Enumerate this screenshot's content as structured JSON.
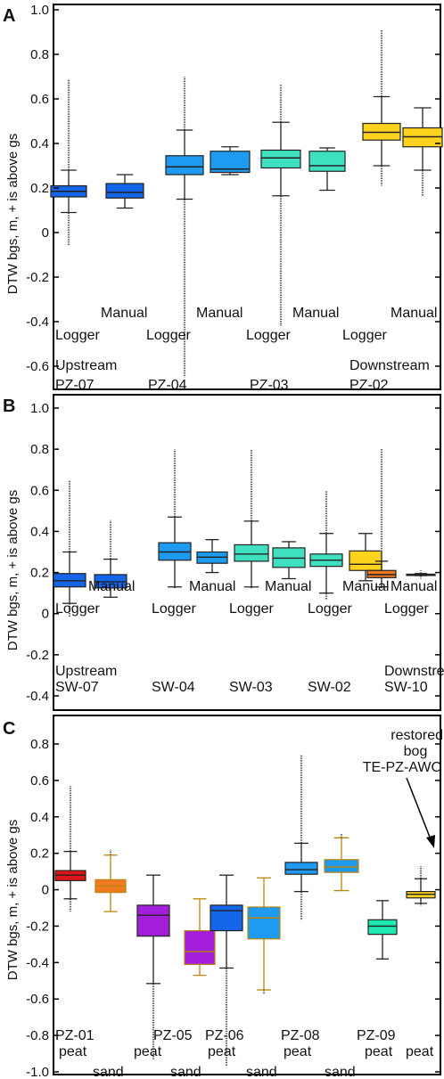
{
  "chart_data": [
    {
      "panel": "A",
      "type": "box",
      "ylabel": "DTW bgs, m, + is above gs",
      "ylim": [
        -0.65,
        1.02
      ],
      "yticks": [
        "1.0",
        "0.8",
        "0.6",
        "0.4",
        "0.2",
        "0",
        "-0.2",
        "-0.4",
        "-0.6"
      ],
      "boxes": [
        {
          "group": "PZ-07",
          "method": "Logger",
          "color": "#1565e8",
          "q1": 0.16,
          "median": 0.185,
          "q3": 0.21,
          "whislo": 0.09,
          "whishi": 0.28,
          "outlo": -0.06,
          "outhi": 0.69
        },
        {
          "group": "PZ-07",
          "method": "Manual",
          "color": "#1565e8",
          "q1": 0.155,
          "median": 0.18,
          "q3": 0.22,
          "whislo": 0.11,
          "whishi": 0.26,
          "outlo": null,
          "outhi": null
        },
        {
          "group": "PZ-04",
          "method": "Logger",
          "color": "#1e9af0",
          "q1": 0.26,
          "median": 0.295,
          "q3": 0.345,
          "whislo": 0.15,
          "whishi": 0.46,
          "outlo": -0.65,
          "outhi": 0.7
        },
        {
          "group": "PZ-04",
          "method": "Manual",
          "color": "#1e9af0",
          "q1": 0.27,
          "median": 0.285,
          "q3": 0.365,
          "whislo": 0.26,
          "whishi": 0.385,
          "outlo": null,
          "outhi": null
        },
        {
          "group": "PZ-03",
          "method": "Logger",
          "color": "#3fe0c0",
          "q1": 0.29,
          "median": 0.335,
          "q3": 0.37,
          "whislo": 0.165,
          "whishi": 0.495,
          "outlo": -0.42,
          "outhi": 0.665
        },
        {
          "group": "PZ-03",
          "method": "Manual",
          "color": "#3fe0c0",
          "q1": 0.275,
          "median": 0.3,
          "q3": 0.365,
          "whislo": 0.19,
          "whishi": 0.38,
          "outlo": null,
          "outhi": null
        },
        {
          "group": "PZ-02",
          "method": "Logger",
          "color": "#ffd21e",
          "q1": 0.415,
          "median": 0.45,
          "q3": 0.49,
          "whislo": 0.3,
          "whishi": 0.61,
          "outlo": 0.21,
          "outhi": 0.91
        },
        {
          "group": "PZ-02",
          "method": "Manual",
          "color": "#ffd21e",
          "q1": 0.385,
          "median": 0.43,
          "q3": 0.47,
          "whislo": 0.28,
          "whishi": 0.56,
          "outlo": 0.16,
          "outhi": null
        }
      ],
      "method_labels": [
        "Logger",
        "Manual",
        "Logger",
        "Manual",
        "Logger",
        "Manual",
        "Logger",
        "Manual"
      ],
      "site_labels": [
        {
          "top": "Upstream",
          "bottom": "PZ-07"
        },
        {
          "top": "",
          "bottom": "PZ-04"
        },
        {
          "top": "",
          "bottom": "PZ-03"
        },
        {
          "top": "Downstream",
          "bottom": "PZ-02"
        }
      ]
    },
    {
      "panel": "B",
      "type": "box",
      "ylabel": "DTW bgs, m, + is above gs",
      "ylim": [
        -0.4,
        1.02
      ],
      "yticks": [
        "1.0",
        "0.8",
        "0.6",
        "0.4",
        "0.2",
        "0",
        "-0.2",
        "-0.4"
      ],
      "boxes": [
        {
          "group": "SW-07",
          "method": "Logger",
          "color": "#1565e8",
          "q1": 0.13,
          "median": 0.16,
          "q3": 0.195,
          "whislo": 0.05,
          "whishi": 0.3,
          "outlo": -0.02,
          "outhi": 0.65
        },
        {
          "group": "SW-07",
          "method": "Manual",
          "color": "#1565e8",
          "q1": 0.125,
          "median": 0.155,
          "q3": 0.19,
          "whislo": 0.08,
          "whishi": 0.265,
          "outlo": null,
          "outhi": 0.455
        },
        {
          "group": "SW-04",
          "method": "Logger",
          "color": "#1e9af0",
          "q1": 0.26,
          "median": 0.3,
          "q3": 0.345,
          "whislo": 0.13,
          "whishi": 0.47,
          "outlo": 0.12,
          "outhi": 0.8
        },
        {
          "group": "SW-04",
          "method": "Manual",
          "color": "#1e9af0",
          "q1": 0.245,
          "median": 0.275,
          "q3": 0.3,
          "whislo": 0.2,
          "whishi": 0.36,
          "outlo": null,
          "outhi": null
        },
        {
          "group": "SW-03",
          "method": "Logger",
          "color": "#3fe0c0",
          "q1": 0.255,
          "median": 0.29,
          "q3": 0.335,
          "whislo": 0.13,
          "whishi": 0.45,
          "outlo": 0.12,
          "outhi": 0.8
        },
        {
          "group": "SW-03",
          "method": "Manual",
          "color": "#3fe0c0",
          "q1": 0.225,
          "median": 0.27,
          "q3": 0.32,
          "whislo": 0.17,
          "whishi": 0.35,
          "outlo": null,
          "outhi": null
        },
        {
          "group": "SW-02",
          "method": "Logger",
          "color": "#3fe0c0",
          "q1": 0.23,
          "median": 0.26,
          "q3": 0.29,
          "whislo": 0.1,
          "whishi": 0.39,
          "outlo": 0.07,
          "outhi": 0.6
        },
        {
          "group": "SW-02",
          "method": "Manual",
          "color": "#ffd21e",
          "q1": 0.21,
          "median": 0.24,
          "q3": 0.305,
          "whislo": 0.16,
          "whishi": 0.39,
          "outlo": null,
          "outhi": null
        },
        {
          "group": "SW-10",
          "method": "Logger",
          "color": "#f07a22",
          "q1": 0.175,
          "median": 0.19,
          "q3": 0.21,
          "whislo": 0.13,
          "whishi": 0.255,
          "outlo": 0.12,
          "outhi": 0.8
        },
        {
          "group": "SW-10",
          "method": "Manual",
          "color": "#f07a22",
          "q1": 0.188,
          "median": 0.19,
          "q3": 0.192,
          "whislo": 0.185,
          "whishi": 0.195,
          "outlo": 0.17,
          "outhi": 0.21
        }
      ],
      "method_labels": [
        "Logger",
        "Manual",
        "Logger",
        "Manual",
        "Logger",
        "Manual",
        "Logger",
        "Manual",
        "Logger",
        "Manual"
      ],
      "site_labels": [
        {
          "top": "Upstream",
          "bottom": "SW-07"
        },
        {
          "top": "",
          "bottom": "SW-04"
        },
        {
          "top": "",
          "bottom": "SW-03"
        },
        {
          "top": "",
          "bottom": "SW-02"
        },
        {
          "top": "Downstream",
          "bottom": "SW-10"
        }
      ]
    },
    {
      "panel": "C",
      "type": "box",
      "ylabel": "DTW bgs, m, + is above gs",
      "ylim": [
        -1.0,
        0.9
      ],
      "yticks": [
        "0.8",
        "0.6",
        "0.4",
        "0.2",
        "0",
        "-0.2",
        "-0.4",
        "-0.6",
        "-0.8",
        "-1.0"
      ],
      "boxes": [
        {
          "site": "PZ-01",
          "material": "peat",
          "color": "#e01515",
          "edge": "#222222",
          "q1": 0.05,
          "median": 0.08,
          "q3": 0.105,
          "whislo": -0.05,
          "whishi": 0.21,
          "outlo": -0.12,
          "outhi": 0.57
        },
        {
          "site": "PZ-01",
          "material": "sand",
          "color": "#f07a22",
          "edge": "#b8860b",
          "q1": -0.015,
          "median": 0.02,
          "q3": 0.055,
          "whislo": -0.12,
          "whishi": 0.19,
          "outlo": null,
          "outhi": 0.22
        },
        {
          "site": "PZ-05",
          "material": "peat",
          "color": "#a21ed8",
          "edge": "#222222",
          "q1": -0.255,
          "median": -0.14,
          "q3": -0.085,
          "whislo": -0.515,
          "whishi": 0.08,
          "outlo": -0.93,
          "outhi": null
        },
        {
          "site": "PZ-05",
          "material": "sand",
          "color": "#a21ed8",
          "edge": "#b8860b",
          "q1": -0.41,
          "median": -0.34,
          "q3": -0.225,
          "whislo": -0.47,
          "whishi": -0.05,
          "outlo": null,
          "outhi": null
        },
        {
          "site": "PZ-06",
          "material": "peat",
          "color": "#1565e8",
          "edge": "#222222",
          "q1": -0.225,
          "median": -0.115,
          "q3": -0.085,
          "whislo": -0.43,
          "whishi": 0.08,
          "outlo": -0.97,
          "outhi": null
        },
        {
          "site": "PZ-06",
          "material": "sand",
          "color": "#1e9af0",
          "edge": "#b8860b",
          "q1": -0.27,
          "median": -0.155,
          "q3": -0.095,
          "whislo": -0.55,
          "whishi": 0.065,
          "outlo": -0.57,
          "outhi": null
        },
        {
          "site": "PZ-08",
          "material": "peat",
          "color": "#1e9af0",
          "edge": "#222222",
          "q1": 0.085,
          "median": 0.11,
          "q3": 0.15,
          "whislo": -0.01,
          "whishi": 0.255,
          "outlo": -0.17,
          "outhi": 0.74
        },
        {
          "site": "PZ-08",
          "material": "sand",
          "color": "#1e9af0",
          "edge": "#b8860b",
          "q1": 0.095,
          "median": 0.125,
          "q3": 0.165,
          "whislo": -0.005,
          "whishi": 0.285,
          "outlo": null,
          "outhi": 0.31
        },
        {
          "site": "PZ-09",
          "material": "peat",
          "color": "#1fe8b0",
          "edge": "#222222",
          "q1": -0.245,
          "median": -0.2,
          "q3": -0.165,
          "whislo": -0.38,
          "whishi": -0.06,
          "outlo": null,
          "outhi": null
        },
        {
          "site": "TE-PZ-AWC",
          "material": "peat",
          "color": "#ffd21e",
          "edge": "#222222",
          "q1": -0.045,
          "median": -0.025,
          "q3": -0.01,
          "whislo": -0.075,
          "whishi": 0.06,
          "outlo": -0.09,
          "outhi": 0.13
        }
      ],
      "site_labels": [
        "PZ-01",
        "PZ-05",
        "PZ-06",
        "PZ-08",
        "PZ-09"
      ],
      "material_labels": [
        "peat",
        "sand",
        "peat",
        "sand",
        "peat",
        "sand",
        "peat",
        "sand",
        "peat",
        "peat"
      ],
      "annotation": [
        "restored",
        "bog",
        "TE-PZ-AWC"
      ]
    }
  ]
}
